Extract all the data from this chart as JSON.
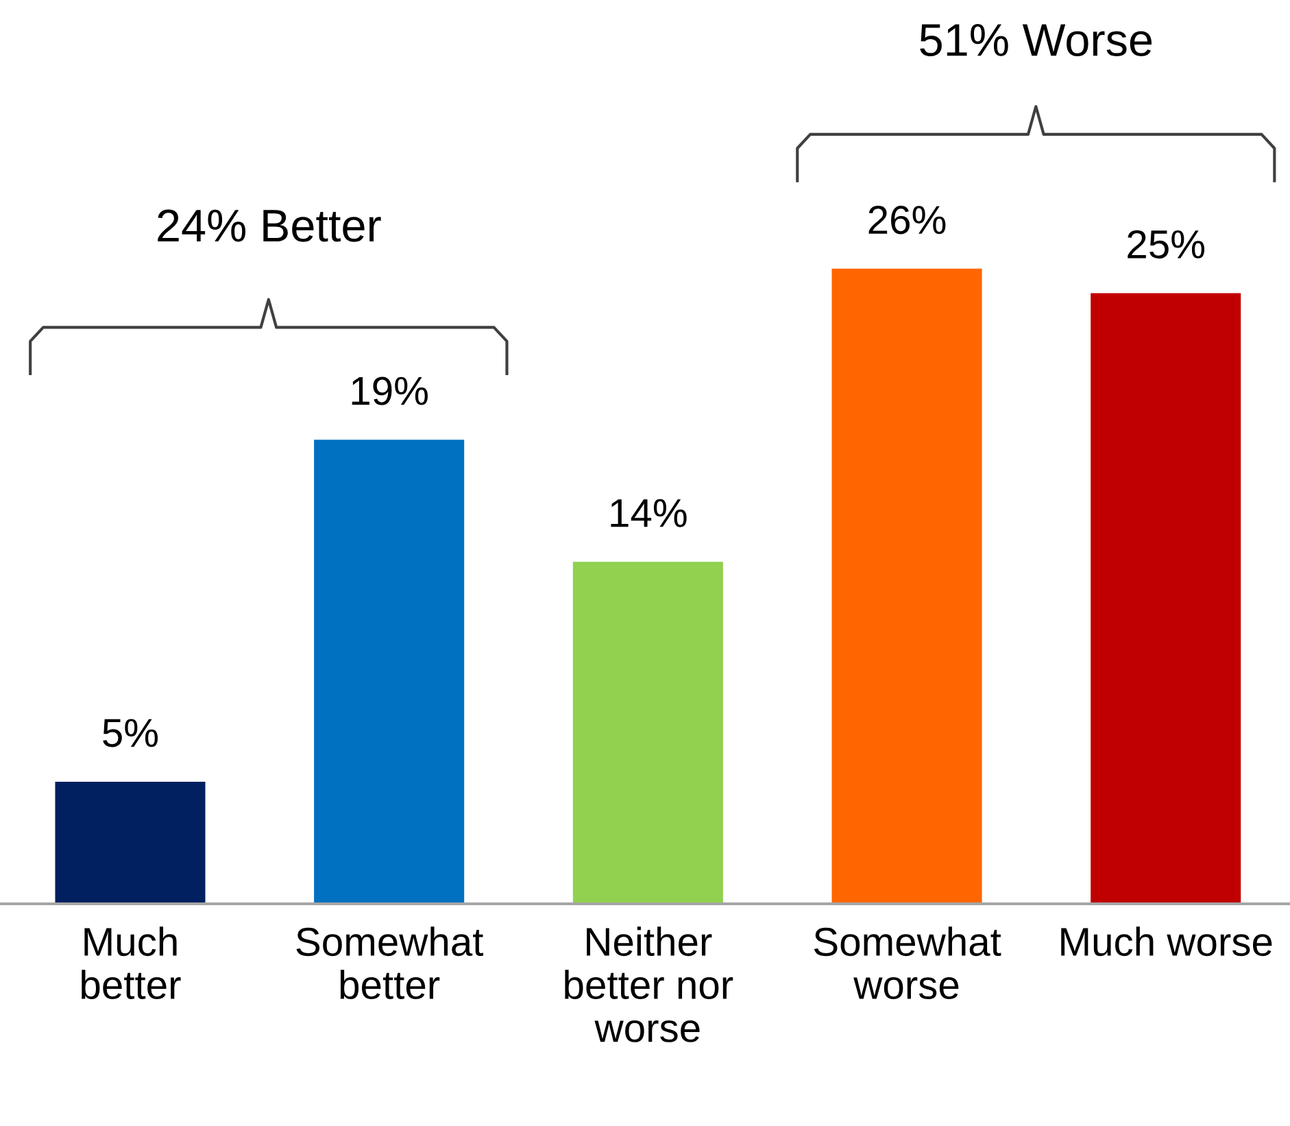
{
  "chart_data": {
    "type": "bar",
    "categories": [
      "Much\nbetter",
      "Somewhat\nbetter",
      "Neither\nbetter nor\nworse",
      "Somewhat\nworse",
      "Much worse"
    ],
    "values": [
      5,
      19,
      14,
      26,
      25
    ],
    "colors": [
      "#002060",
      "#0070c0",
      "#92d050",
      "#ff6600",
      "#c00000"
    ],
    "value_labels": [
      "5%",
      "19%",
      "14%",
      "26%",
      "25%"
    ],
    "tick_labels": "x",
    "grid": false,
    "legend": false,
    "annotations": [
      "24% Better",
      "51% Worse"
    ]
  }
}
